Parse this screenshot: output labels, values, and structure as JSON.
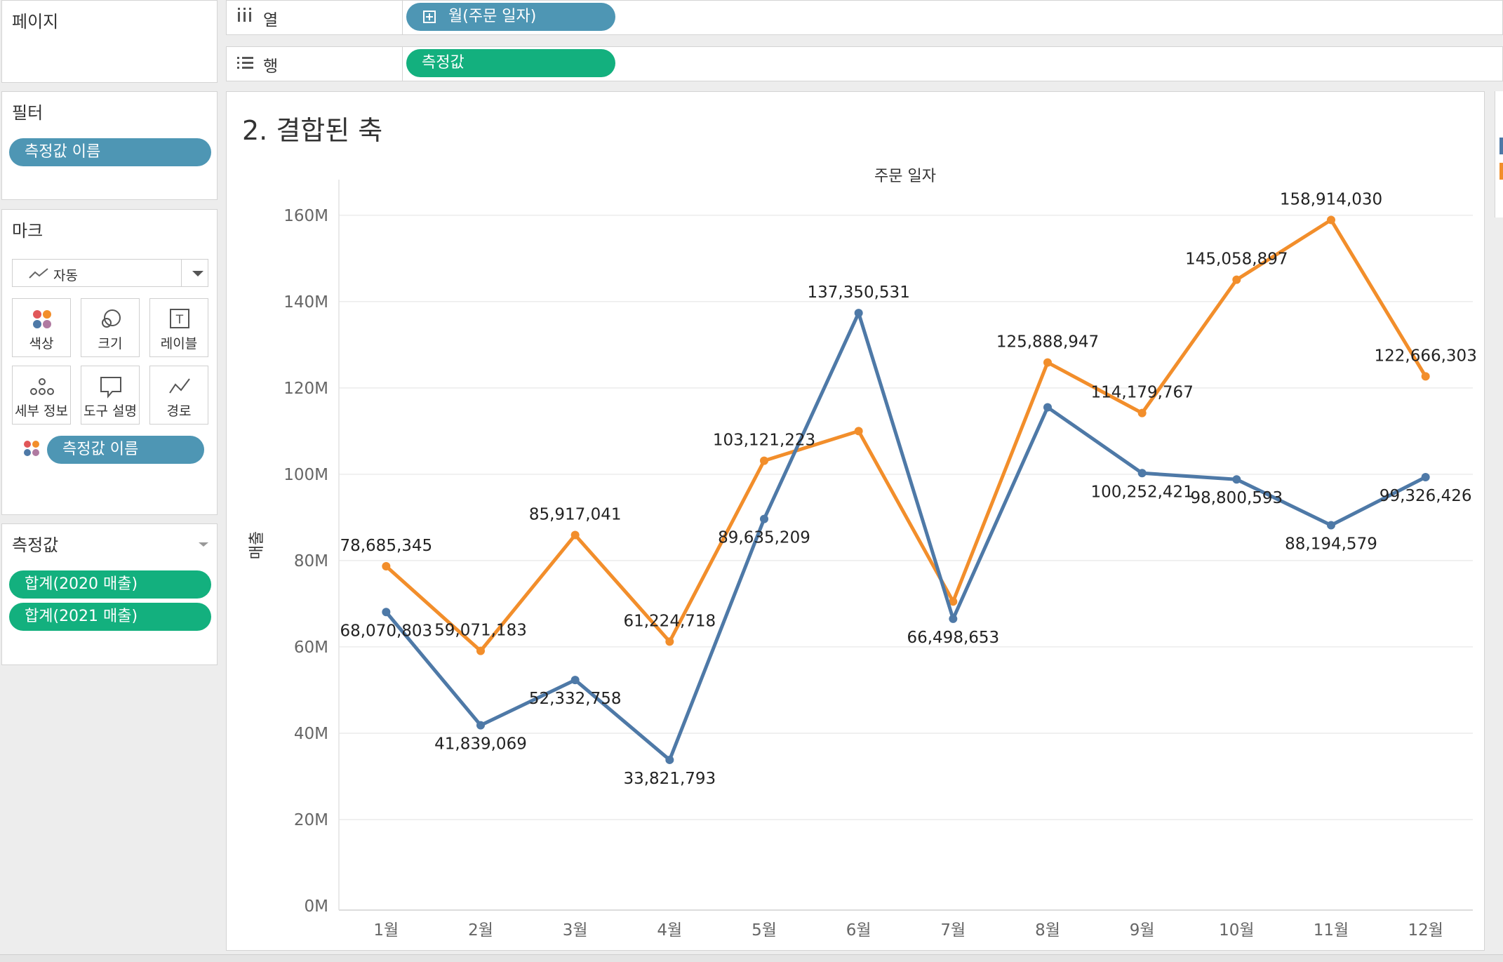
{
  "left_panel": {
    "pages_title": "페이지",
    "filters_title": "필터",
    "filter_pill": "측정값 이름",
    "marks_title": "마크",
    "mark_type": "자동",
    "mark_cards": [
      {
        "label": "색상",
        "icon": "color-icon"
      },
      {
        "label": "크기",
        "icon": "size-icon"
      },
      {
        "label": "레이블",
        "icon": "label-icon"
      },
      {
        "label": "세부 정보",
        "icon": "detail-icon"
      },
      {
        "label": "도구 설명",
        "icon": "tooltip-icon"
      },
      {
        "label": "경로",
        "icon": "path-icon"
      }
    ],
    "marks_pill": "측정값 이름",
    "measures_title": "측정값",
    "measure_pills": [
      "합계(2020 매출)",
      "합계(2021 매출)"
    ]
  },
  "shelves": {
    "columns_label": "열",
    "columns_pill": "월(주문 일자)",
    "rows_label": "행",
    "rows_pill": "측정값"
  },
  "sheet_title": "2. 결합된 축",
  "colors": {
    "series2020": "#4e79a7",
    "series2021": "#f28e2b",
    "blue_pill": "#4e96b4",
    "green_pill": "#13b07e"
  },
  "chart_data": {
    "type": "line",
    "title": "주문 일자",
    "xlabel": "주문 일자",
    "ylabel": "매출",
    "categories": [
      "1월",
      "2월",
      "3월",
      "4월",
      "5월",
      "6월",
      "7월",
      "8월",
      "9월",
      "10월",
      "11월",
      "12월"
    ],
    "ylim": [
      0,
      165000000
    ],
    "yticks": [
      0,
      20000000,
      40000000,
      60000000,
      80000000,
      100000000,
      120000000,
      140000000,
      160000000
    ],
    "ytick_labels": [
      "0M",
      "20M",
      "40M",
      "60M",
      "80M",
      "100M",
      "120M",
      "140M",
      "160M"
    ],
    "grid": true,
    "series": [
      {
        "key": "2020",
        "color": "#4e79a7",
        "values": [
          68070803,
          41839069,
          52332758,
          33821793,
          89635209,
          137350531,
          66498653,
          115500000,
          100252421,
          98800593,
          88194579,
          99326426
        ],
        "labels": [
          "68,070,803",
          "41,839,069",
          "52,332,758",
          "33,821,793",
          "89,635,209",
          "137,350,531",
          "66,498,653",
          "",
          "100,252,421",
          "98,800,593",
          "88,194,579",
          "99,326,426"
        ]
      },
      {
        "key": "2021",
        "color": "#f28e2b",
        "values": [
          78685345,
          59071183,
          85917041,
          61224718,
          103121223,
          110000000,
          70500000,
          125888947,
          114179767,
          145058897,
          158914030,
          122666303
        ],
        "labels": [
          "78,685,345",
          "59,071,183",
          "85,917,041",
          "61,224,718",
          "103,121,223",
          "",
          "",
          "125,888,947",
          "114,179,767",
          "145,058,897",
          "158,914,030",
          "122,666,303"
        ]
      }
    ]
  }
}
